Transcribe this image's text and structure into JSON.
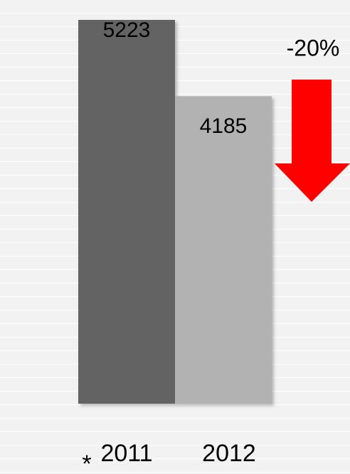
{
  "chart_data": {
    "type": "bar",
    "categories": [
      "2011",
      "2012"
    ],
    "values": [
      5223,
      4185
    ],
    "colors": [
      "#636363",
      "#b2b2b2"
    ],
    "annotation": "-20%",
    "footnote_marker": "*",
    "grid": true
  }
}
